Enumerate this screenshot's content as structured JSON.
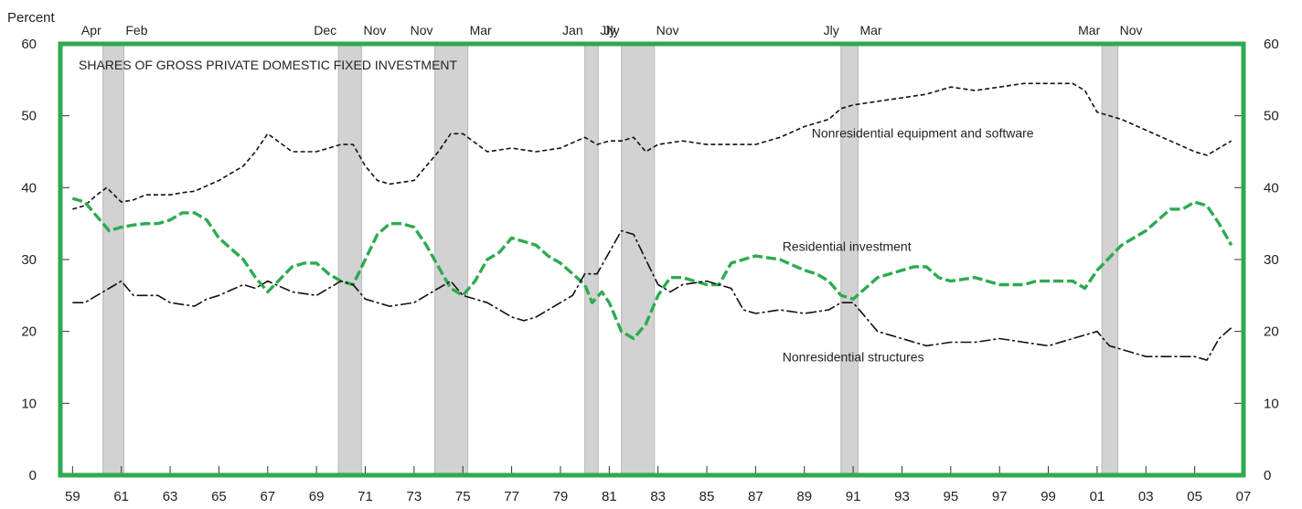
{
  "chart_data": {
    "type": "line",
    "title": "SHARES OF GROSS PRIVATE DOMESTIC FIXED INVESTMENT",
    "ylabel": "Percent",
    "ylim": [
      0,
      60
    ],
    "xlim": [
      1958.5,
      2007.0
    ],
    "y_ticks": [
      0,
      10,
      20,
      30,
      40,
      50,
      60
    ],
    "x_ticks": [
      {
        "x": 1959,
        "label": "59"
      },
      {
        "x": 1961,
        "label": "61"
      },
      {
        "x": 1963,
        "label": "63"
      },
      {
        "x": 1965,
        "label": "65"
      },
      {
        "x": 1967,
        "label": "67"
      },
      {
        "x": 1969,
        "label": "69"
      },
      {
        "x": 1971,
        "label": "71"
      },
      {
        "x": 1973,
        "label": "73"
      },
      {
        "x": 1975,
        "label": "75"
      },
      {
        "x": 1977,
        "label": "77"
      },
      {
        "x": 1979,
        "label": "79"
      },
      {
        "x": 1981,
        "label": "81"
      },
      {
        "x": 1983,
        "label": "83"
      },
      {
        "x": 1985,
        "label": "85"
      },
      {
        "x": 1987,
        "label": "87"
      },
      {
        "x": 1989,
        "label": "89"
      },
      {
        "x": 1991,
        "label": "91"
      },
      {
        "x": 1993,
        "label": "93"
      },
      {
        "x": 1995,
        "label": "95"
      },
      {
        "x": 1997,
        "label": "97"
      },
      {
        "x": 1999,
        "label": "99"
      },
      {
        "x": 2001,
        "label": "01"
      },
      {
        "x": 2003,
        "label": "03"
      },
      {
        "x": 2005,
        "label": "05"
      },
      {
        "x": 2007,
        "label": "07"
      }
    ],
    "recessions": [
      {
        "start": 1960.25,
        "end": 1961.1,
        "start_label": "Apr",
        "end_label": "Feb"
      },
      {
        "start": 1969.9,
        "end": 1970.85,
        "start_label": "Dec",
        "end_label": "Nov"
      },
      {
        "start": 1973.85,
        "end": 1975.2,
        "start_label": "Nov",
        "end_label": "Mar"
      },
      {
        "start": 1980.0,
        "end": 1980.55,
        "start_label": "Jan",
        "end_label": "Jly"
      },
      {
        "start": 1981.5,
        "end": 1982.85,
        "start_label": "Jly",
        "end_label": "Nov"
      },
      {
        "start": 1990.5,
        "end": 1991.2,
        "start_label": "Jly",
        "end_label": "Mar"
      },
      {
        "start": 2001.2,
        "end": 2001.85,
        "start_label": "Mar",
        "end_label": "Nov"
      }
    ],
    "series": [
      {
        "name": "Nonresidential equipment and software",
        "color": "#111111",
        "x": [
          1959,
          1959.5,
          1960,
          1960.4,
          1961,
          1961.5,
          1962,
          1963,
          1963.5,
          1964,
          1965,
          1965.5,
          1966,
          1966.5,
          1967,
          1968,
          1969,
          1969.5,
          1970,
          1970.5,
          1971,
          1971.5,
          1972,
          1973,
          1973.5,
          1974,
          1974.5,
          1975,
          1976,
          1977,
          1978,
          1979,
          1980,
          1980.5,
          1981,
          1981.5,
          1982,
          1982.5,
          1983,
          1984,
          1985,
          1986,
          1987,
          1988,
          1989,
          1990,
          1990.5,
          1991,
          1992,
          1993,
          1994,
          1995,
          1996,
          1997,
          1998,
          1999,
          2000,
          2000.5,
          2001,
          2002,
          2003,
          2004,
          2005,
          2005.5,
          2006,
          2006.5
        ],
        "values": [
          37,
          37.5,
          39,
          40,
          38,
          38.3,
          39,
          39,
          39.3,
          39.5,
          41,
          42,
          43,
          45,
          47.5,
          45,
          45,
          45.5,
          46,
          46,
          43,
          41,
          40.5,
          41,
          43,
          45,
          47.5,
          47.5,
          45,
          45.5,
          45,
          45.5,
          47,
          46,
          46.5,
          46.5,
          47,
          45,
          46,
          46.5,
          46,
          46,
          46,
          47,
          48.5,
          49.5,
          51,
          51.5,
          52,
          52.5,
          53,
          54,
          53.5,
          54,
          54.5,
          54.5,
          54.5,
          53.5,
          50.5,
          49.5,
          48,
          46.5,
          45,
          44.5,
          45.5,
          46.5
        ]
      },
      {
        "name": "Residential investment",
        "color": "#2eaa50",
        "x": [
          1959,
          1959.5,
          1960,
          1960.5,
          1961,
          1961.5,
          1962,
          1962.5,
          1963,
          1963.5,
          1964,
          1964.5,
          1965,
          1966,
          1966.5,
          1967,
          1968,
          1968.5,
          1969,
          1969.5,
          1970,
          1970.5,
          1971,
          1971.5,
          1972,
          1972.5,
          1973,
          1973.5,
          1974,
          1974.5,
          1975,
          1975.5,
          1976,
          1976.5,
          1977,
          1977.5,
          1978,
          1978.5,
          1979,
          1979.5,
          1980,
          1980.3,
          1980.7,
          1981,
          1981.5,
          1982,
          1982.5,
          1983,
          1983.5,
          1984,
          1985,
          1985.5,
          1986,
          1987,
          1988,
          1989,
          1989.5,
          1990,
          1990.5,
          1991,
          1991.5,
          1992,
          1993,
          1993.5,
          1994,
          1994.5,
          1995,
          1996,
          1997,
          1998,
          1998.5,
          1999,
          2000,
          2000.5,
          2001,
          2002,
          2003,
          2003.5,
          2004,
          2004.5,
          2005,
          2005.5,
          2006,
          2006.5
        ],
        "values": [
          38.5,
          38,
          36,
          34,
          34.5,
          34.8,
          35,
          35,
          35.5,
          36.5,
          36.5,
          35.5,
          33,
          30,
          27.5,
          25.5,
          29,
          29.5,
          29.5,
          28,
          27,
          26.5,
          30,
          33.5,
          35,
          35,
          34.5,
          32,
          29,
          26,
          25,
          27,
          30,
          31,
          33,
          32.5,
          32,
          30.5,
          29.5,
          28,
          26.5,
          24,
          25.5,
          24,
          20,
          19,
          21,
          25,
          27.5,
          27.5,
          26.5,
          26.5,
          29.5,
          30.5,
          30,
          28.5,
          28,
          27,
          25,
          24.5,
          26,
          27.5,
          28.5,
          29,
          29,
          27.5,
          27,
          27.5,
          26.5,
          26.5,
          27,
          27,
          27,
          26,
          28.5,
          32,
          34,
          35.5,
          37,
          37,
          38,
          37.5,
          35,
          32
        ]
      },
      {
        "name": "Nonresidential structures",
        "color": "#111111",
        "x": [
          1959,
          1959.5,
          1960,
          1960.5,
          1961,
          1961.5,
          1962,
          1962.5,
          1963,
          1964,
          1964.5,
          1965,
          1966,
          1966.5,
          1967,
          1968,
          1969,
          1969.5,
          1970,
          1970.5,
          1971,
          1971.5,
          1972,
          1973,
          1973.5,
          1974,
          1974.5,
          1975,
          1976,
          1977,
          1977.5,
          1978,
          1979,
          1979.5,
          1980,
          1980.5,
          1981,
          1981.5,
          1982,
          1982.5,
          1983,
          1983.5,
          1984,
          1985,
          1986,
          1986.5,
          1987,
          1988,
          1989,
          1990,
          1990.5,
          1991,
          1991.5,
          1992,
          1993,
          1994,
          1995,
          1996,
          1997,
          1998,
          1999,
          2000,
          2000.5,
          2001,
          2001.5,
          2002,
          2003,
          2003.5,
          2004,
          2005,
          2005.5,
          2006,
          2006.5
        ],
        "values": [
          24,
          24,
          25,
          26,
          27,
          25,
          25,
          25,
          24,
          23.5,
          24.5,
          25,
          26.5,
          26,
          27,
          25.5,
          25,
          26,
          27,
          26.5,
          24.5,
          24,
          23.5,
          24,
          25,
          26,
          27,
          25,
          24,
          22,
          21.5,
          22,
          24,
          25,
          28,
          28,
          31,
          34,
          33.5,
          30,
          26.5,
          25.5,
          26.5,
          27,
          26,
          23,
          22.5,
          23,
          22.5,
          23,
          24,
          24,
          22,
          20,
          19,
          18,
          18.5,
          18.5,
          19,
          18.5,
          18,
          19,
          19.5,
          20,
          18,
          17.5,
          16.5,
          16.5,
          16.5,
          16.5,
          16,
          19,
          20.5
        ]
      }
    ],
    "annotations": [
      {
        "series": 0,
        "text": "Nonresidential equipment and software",
        "x": 1989.3,
        "y": 47
      },
      {
        "series": 1,
        "text": "Residential investment",
        "x": 1988.1,
        "y": 31.2
      },
      {
        "series": 2,
        "text": "Nonresidential structures",
        "x": 1988.1,
        "y": 15.8
      }
    ]
  }
}
